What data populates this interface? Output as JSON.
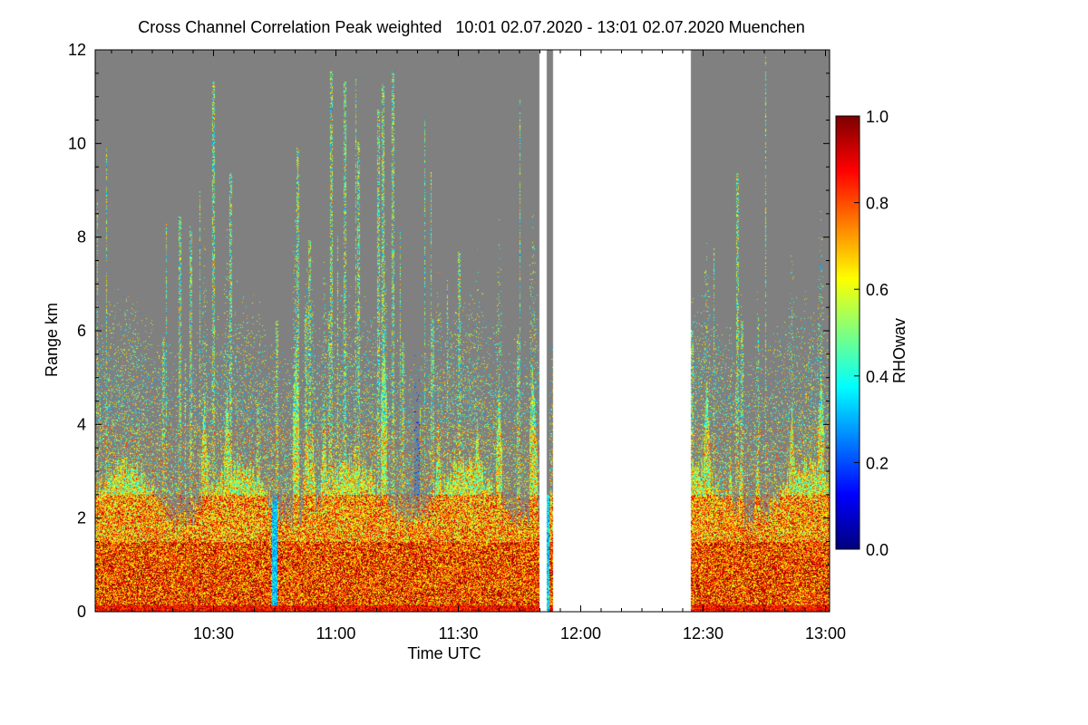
{
  "chart_data": {
    "type": "heatmap",
    "title": "Cross Channel Correlation Peak weighted   10:01 02.07.2020 - 13:01 02.07.2020 Muenchen",
    "xlabel": "Time UTC",
    "ylabel": "Range km",
    "x_range_min_utc": [
      10.0167,
      13.0167
    ],
    "ylim": [
      0,
      12
    ],
    "x_ticks": [
      {
        "label": "10:30",
        "hour": 10.5
      },
      {
        "label": "11:00",
        "hour": 11.0
      },
      {
        "label": "11:30",
        "hour": 11.5
      },
      {
        "label": "12:00",
        "hour": 12.0
      },
      {
        "label": "12:30",
        "hour": 12.5
      },
      {
        "label": "13:00",
        "hour": 13.0
      }
    ],
    "y_ticks": [
      0,
      2,
      4,
      6,
      8,
      10,
      12
    ],
    "colorbar": {
      "label": "RHOwav",
      "range": [
        0.0,
        1.0
      ],
      "ticks": [
        "0.0",
        "0.2",
        "0.4",
        "0.6",
        "0.8",
        "1.0"
      ],
      "colormap": "jet"
    },
    "no_signal_color": "#808080",
    "missing_data_color": "#ffffff",
    "data_gaps_hour": [
      [
        11.83,
        11.87
      ],
      [
        11.885,
        12.45
      ]
    ],
    "approx_profile": "high correlation (0.8-1.0) below ~1.5 km, yellow-green 0.5-0.7 from 2-4 km, sparse values above ~6 km with cirrus streaks up to 12 km between 11:00 and 11:45; low correlation streak near 10:45 and 11:20 (0.1-0.3)"
  }
}
